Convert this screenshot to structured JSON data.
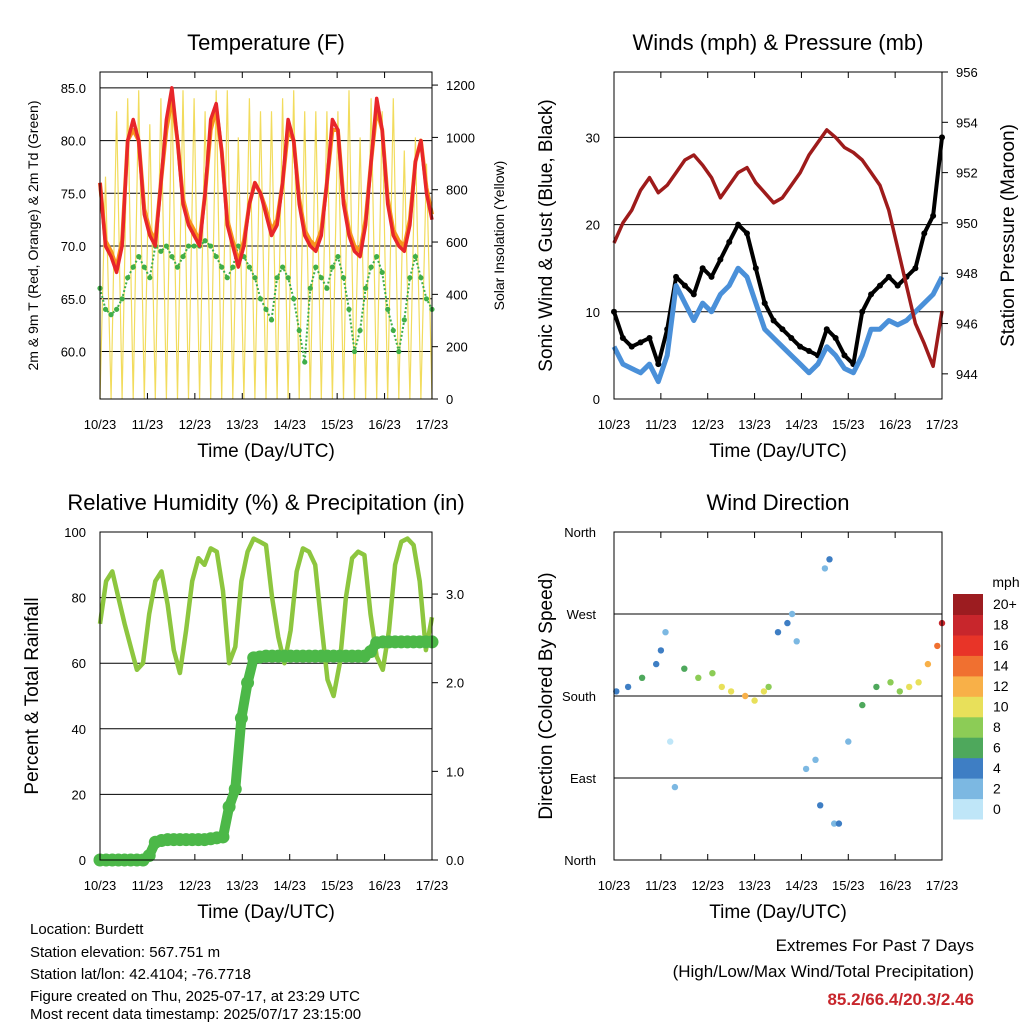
{
  "info": {
    "location": "Location: Burdett",
    "elevation": "Station elevation: 567.751 m",
    "latlon": "Station lat/lon: 42.4104; -76.7718",
    "created": "Figure created on Thu, 2025-07-17, at 23:29 UTC",
    "timestamp": "Most recent data timestamp: 2025/07/17 23:15:00"
  },
  "extremes": {
    "title": "Extremes For Past 7 Days",
    "subtitle": "(High/Low/Max Wind/Total Precipitation)",
    "values": "85.2/66.4/20.3/2.46",
    "value_color": "#c8262c"
  },
  "chart_data": [
    {
      "type": "line",
      "title": "Temperature (F)",
      "xlabel": "Time (Day/UTC)",
      "ylabel": "2m & 9m T (Red, Orange) & 2m Td (Green)",
      "ylabel_right": "Solar Insolation (Yellow)",
      "x_ticks": [
        "10/23",
        "11/23",
        "12/23",
        "13/23",
        "14/23",
        "15/23",
        "16/23",
        "17/23"
      ],
      "ylim": [
        55.5,
        86.5
      ],
      "yticks": [
        "60.0",
        "65.0",
        "70.0",
        "75.0",
        "80.0",
        "85.0"
      ],
      "ylim_right": [
        0,
        1250
      ],
      "yticks_right": [
        "0",
        "200",
        "400",
        "600",
        "800",
        "1000",
        "1200"
      ],
      "grid": true,
      "series": [
        {
          "color": "#e8262a",
          "values": [
            76,
            70,
            69,
            67.5,
            70,
            80,
            82,
            80,
            73,
            71,
            70,
            76,
            82,
            85,
            80,
            74,
            72,
            71,
            70,
            75,
            82,
            83.5,
            79,
            72,
            70,
            68,
            70,
            74,
            76,
            75,
            73,
            71,
            72,
            76,
            82,
            80,
            74,
            71,
            70,
            69.5,
            71,
            76,
            82,
            81,
            74,
            71,
            69.5,
            69,
            72,
            78,
            84,
            81,
            74,
            71,
            70,
            69.5,
            72,
            78,
            80,
            75,
            72.5
          ]
        },
        {
          "color": "#f7941d",
          "values": [
            76,
            70.5,
            69.5,
            68,
            70.5,
            80,
            81,
            80,
            73.5,
            71.5,
            70.5,
            76,
            81,
            84,
            80,
            74.5,
            72.5,
            71.5,
            70.5,
            75,
            81,
            83,
            79,
            72.5,
            70.5,
            68.5,
            70.5,
            74,
            76,
            75,
            73.5,
            71.5,
            72.5,
            76,
            81,
            80,
            74.5,
            71.5,
            70.5,
            70,
            71.5,
            76,
            81,
            81,
            74.5,
            71.5,
            70,
            69.5,
            72.5,
            78,
            83,
            81,
            74.5,
            71.5,
            70.5,
            70,
            72.5,
            78,
            80,
            75.5,
            73
          ]
        },
        {
          "color": "#3fae49",
          "values": [
            66,
            64,
            63.5,
            64,
            65,
            67,
            68,
            69,
            68,
            67,
            70,
            69.5,
            70,
            69,
            68,
            69,
            70,
            70,
            70,
            70.5,
            70,
            69,
            68,
            67,
            68,
            70,
            69,
            68,
            67,
            65,
            64,
            63,
            67,
            68,
            67,
            65,
            62,
            59,
            66,
            68,
            67,
            66,
            68,
            69,
            67,
            64,
            60,
            62,
            66,
            68,
            69,
            67.5,
            64,
            62,
            60,
            63,
            67,
            69,
            67,
            65,
            64
          ]
        },
        {
          "color": "#f2dc5d",
          "values": [
            0,
            850,
            0,
            1100,
            0,
            1150,
            0,
            1180,
            0,
            1050,
            0,
            1150,
            0,
            1180,
            0,
            1180,
            0,
            1150,
            0,
            1100,
            0,
            1180,
            0,
            1180,
            0,
            1000,
            0,
            1150,
            0,
            1100,
            0,
            1100,
            0,
            1150,
            0,
            1180,
            0,
            1100,
            0,
            1100,
            0,
            1100,
            0,
            1100,
            0,
            1180,
            0,
            1000,
            0,
            1150,
            0,
            1100,
            0,
            1150,
            0,
            950,
            0,
            1000,
            0,
            900,
            0
          ]
        }
      ]
    },
    {
      "type": "line",
      "title": "Winds (mph) & Pressure (mb)",
      "xlabel": "Time (Day/UTC)",
      "ylabel": "Sonic Wind & Gust (Blue, Black)",
      "ylabel_right": "Station Pressure (Maroon)",
      "x_ticks": [
        "10/23",
        "11/23",
        "12/23",
        "13/23",
        "14/23",
        "15/23",
        "16/23",
        "17/23"
      ],
      "ylim": [
        0,
        37.5
      ],
      "yticks": [
        "0",
        "10",
        "20",
        "30"
      ],
      "ylim_right": [
        943.0,
        956.0
      ],
      "yticks_right": [
        "944",
        "946",
        "948",
        "950",
        "952",
        "954",
        "956"
      ],
      "grid": true,
      "series": [
        {
          "color": "#4a90d9",
          "values": [
            6,
            4,
            3.5,
            3,
            4,
            2,
            5,
            13,
            11,
            9,
            11,
            10,
            12,
            13,
            15,
            14,
            11,
            8,
            7,
            6,
            5,
            4,
            3,
            4,
            6,
            5,
            3.5,
            3,
            5,
            8,
            8,
            9,
            8.5,
            9,
            10,
            11,
            12,
            14
          ]
        },
        {
          "color": "#000000",
          "values": [
            10,
            7,
            6,
            6.5,
            7,
            4,
            8,
            14,
            13,
            12,
            15,
            14,
            16,
            18,
            20,
            19,
            15,
            11,
            9,
            8,
            7,
            6,
            5.5,
            5,
            8,
            7,
            5,
            4,
            10,
            12,
            13,
            14,
            13,
            14,
            15,
            19,
            21,
            30
          ]
        },
        {
          "color": "#9e1b1b",
          "values": [
            949.2,
            950,
            950.5,
            951.3,
            951.8,
            951.2,
            951.5,
            952,
            952.5,
            952.7,
            952.3,
            951.8,
            951,
            951.5,
            952,
            952.2,
            951.6,
            951.2,
            950.8,
            951,
            951.5,
            952,
            952.7,
            953.2,
            953.7,
            953.4,
            953,
            952.8,
            952.5,
            952,
            951.5,
            950.5,
            949,
            947.5,
            946,
            945.2,
            944.3,
            946.5
          ]
        }
      ]
    },
    {
      "type": "line",
      "title": "Relative Humidity (%) & Precipitation (in)",
      "xlabel": "Time (Day/UTC)",
      "ylabel": "Percent & Total Rainfall",
      "x_ticks": [
        "10/23",
        "11/23",
        "12/23",
        "13/23",
        "14/23",
        "15/23",
        "16/23",
        "17/23"
      ],
      "ylim": [
        0,
        100
      ],
      "yticks": [
        "0",
        "20",
        "40",
        "60",
        "80",
        "100"
      ],
      "ylim_right": [
        0,
        3.7
      ],
      "yticks_right": [
        "0.0",
        "1.0",
        "2.0",
        "3.0"
      ],
      "grid": true,
      "series": [
        {
          "color": "#8dc63f",
          "values": [
            72,
            85,
            88,
            80,
            72,
            65,
            58,
            60,
            75,
            85,
            88,
            78,
            64,
            57,
            70,
            85,
            92,
            90,
            95,
            94,
            82,
            60,
            65,
            85,
            94,
            98,
            97,
            96,
            80,
            68,
            60,
            70,
            88,
            95,
            94,
            90,
            72,
            55,
            50,
            60,
            80,
            92,
            94,
            93,
            75,
            62,
            58,
            70,
            90,
            97,
            98,
            96,
            85,
            64,
            74
          ]
        },
        {
          "color": "#4cb848",
          "values": [
            0,
            0,
            0,
            0,
            0,
            0,
            0,
            0,
            0.05,
            0.2,
            0.22,
            0.23,
            0.23,
            0.23,
            0.23,
            0.23,
            0.23,
            0.23,
            0.24,
            0.25,
            0.26,
            0.6,
            0.8,
            1.6,
            2.0,
            2.28,
            2.29,
            2.3,
            2.3,
            2.3,
            2.3,
            2.3,
            2.3,
            2.3,
            2.3,
            2.3,
            2.3,
            2.3,
            2.3,
            2.3,
            2.3,
            2.3,
            2.3,
            2.3,
            2.35,
            2.45,
            2.46,
            2.46,
            2.46,
            2.46,
            2.46,
            2.46,
            2.46,
            2.46,
            2.46
          ]
        }
      ]
    },
    {
      "type": "scatter",
      "title": "Wind Direction",
      "xlabel": "Time (Day/UTC)",
      "ylabel": "Direction (Colored By Speed)",
      "x_ticks": [
        "10/23",
        "11/23",
        "12/23",
        "13/23",
        "14/23",
        "15/23",
        "16/23",
        "17/23"
      ],
      "y_ticks": [
        "North",
        "East",
        "South",
        "West",
        "North"
      ],
      "ylim": [
        0,
        360
      ],
      "grid": true,
      "colorbar_title": "mph",
      "colorbar_labels": [
        "0",
        "2",
        "4",
        "6",
        "8",
        "10",
        "12",
        "14",
        "16",
        "18",
        "20+"
      ],
      "colorbar_colors": [
        "#bfe6f8",
        "#7cb8e2",
        "#3e7ec4",
        "#4ea85c",
        "#8ccc56",
        "#e8e05a",
        "#f8b048",
        "#f07030",
        "#e83428",
        "#c8262c",
        "#9c1c20"
      ],
      "series": [
        {
          "name": "",
          "x": [
            0.05,
            0.3,
            0.6,
            0.9,
            1.0,
            1.1,
            1.2,
            1.3,
            1.5,
            1.8,
            2.1,
            2.3,
            2.5,
            2.8,
            3.0,
            3.2,
            3.3,
            3.5,
            3.7,
            3.8,
            3.9,
            4.1,
            4.3,
            4.4,
            4.5,
            4.6,
            4.7,
            4.8,
            5.0,
            5.3,
            5.6,
            5.9,
            6.1,
            6.3,
            6.5,
            6.7,
            6.9,
            7.0
          ],
          "y": [
            185,
            190,
            200,
            215,
            230,
            250,
            130,
            80,
            210,
            200,
            205,
            190,
            185,
            180,
            175,
            185,
            190,
            250,
            260,
            270,
            240,
            100,
            110,
            60,
            320,
            330,
            40,
            40,
            130,
            170,
            190,
            195,
            185,
            190,
            195,
            215,
            235,
            260
          ],
          "s": [
            4,
            5,
            6,
            5,
            4,
            2,
            1,
            3,
            7,
            8,
            9,
            10,
            11,
            12,
            11,
            10,
            9,
            5,
            4,
            3,
            2,
            2,
            3,
            4,
            3,
            5,
            2,
            4,
            3,
            6,
            7,
            8,
            9,
            10,
            11,
            12,
            15,
            18
          ]
        }
      ]
    }
  ]
}
